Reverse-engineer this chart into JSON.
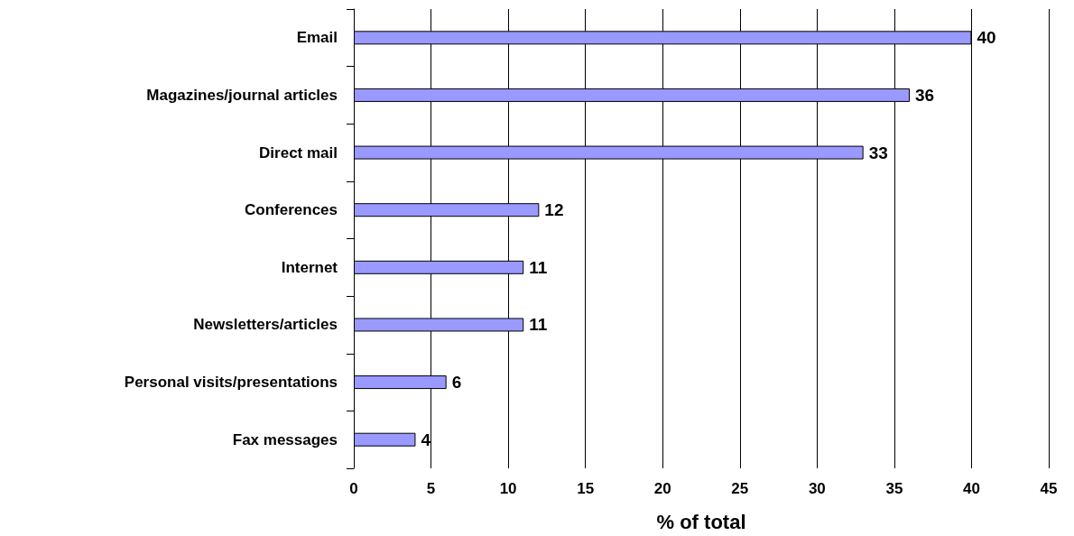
{
  "chart_data": {
    "type": "bar",
    "orientation": "horizontal",
    "xlabel": "% of total",
    "categories": [
      "Email",
      "Magazines/journal articles",
      "Direct mail",
      "Conferences",
      "Internet",
      "Newsletters/articles",
      "Personal visits/presentations",
      "Fax messages"
    ],
    "values": [
      40,
      36,
      33,
      12,
      11,
      11,
      6,
      4
    ],
    "color": "#9999ff",
    "xlim": [
      0,
      45
    ],
    "xticks": [
      0,
      5,
      10,
      15,
      20,
      25,
      30,
      35,
      40,
      45
    ],
    "grid": "x",
    "data_labels": true
  }
}
